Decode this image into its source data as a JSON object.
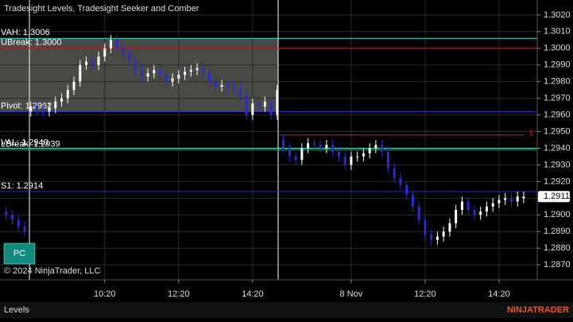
{
  "chart_data": {
    "type": "candlestick",
    "title": "Tradesight Levels, Tradesight Seeker and Comber",
    "copyright": "© 2024 NinjaTrader, LLC",
    "button": "PC",
    "tab": "Levels",
    "logo": "NINJATRADER",
    "up_color": "#ffffff",
    "down_color": "#2a2ad8",
    "grid": true,
    "xlim": [
      -1,
      86.2
    ],
    "xticks": [
      {
        "value": 16,
        "label": "10:20"
      },
      {
        "value": 28,
        "label": "12:20"
      },
      {
        "value": 40,
        "label": "14:20"
      },
      {
        "value": 56,
        "label": "8 Nov"
      },
      {
        "value": 68,
        "label": "12:20"
      },
      {
        "value": 80,
        "label": "14:20"
      }
    ],
    "ylim": [
      1.2861,
      1.3029
    ],
    "yticks": [
      {
        "value": 1.302,
        "label": "1.3020"
      },
      {
        "value": 1.301,
        "label": "1.3010"
      },
      {
        "value": 1.3,
        "label": "1.3000"
      },
      {
        "value": 1.299,
        "label": "1.2990"
      },
      {
        "value": 1.298,
        "label": "1.2980"
      },
      {
        "value": 1.297,
        "label": "1.2970"
      },
      {
        "value": 1.296,
        "label": "1.2960"
      },
      {
        "value": 1.295,
        "label": "1.2950"
      },
      {
        "value": 1.294,
        "label": "1.2940"
      },
      {
        "value": 1.293,
        "label": "1.2930"
      },
      {
        "value": 1.292,
        "label": "1.2920"
      },
      {
        "value": 1.291,
        "label": "1.2910"
      },
      {
        "value": 1.29,
        "label": "1.2900"
      },
      {
        "value": 1.289,
        "label": "1.2890"
      },
      {
        "value": 1.288,
        "label": "1.2880"
      },
      {
        "value": 1.287,
        "label": "1.2870"
      }
    ],
    "last_price": {
      "value": 1.2911,
      "label": "1.2911"
    },
    "levels": [
      {
        "label": "VAH: 1.3006",
        "value": 1.3006,
        "color": "#40e0d0"
      },
      {
        "label": "UBreak: 1.3000",
        "value": 1.3,
        "color": "#c02020"
      },
      {
        "label": "Pivot: 1.2962",
        "value": 1.2962,
        "color": "#3434d0"
      },
      {
        "label": "VAL: 1.2940",
        "value": 1.294,
        "color": "#40e0d0"
      },
      {
        "label": "LBreak: 1.2939",
        "value": 1.2939,
        "color": "#2e8b57"
      },
      {
        "label": "S1: 1.2914",
        "value": 1.2914,
        "color": "#2a2ad8"
      }
    ],
    "seeker_line": {
      "label": "1",
      "value": 1.2948,
      "color": "#c02020"
    },
    "open": [
      1.2902,
      1.29,
      1.2897,
      1.2893,
      1.2962,
      1.2965,
      1.2963,
      1.2962,
      1.2964,
      1.2968,
      1.297,
      1.2975,
      1.298,
      1.299,
      1.2992,
      1.299,
      1.2995,
      1.3,
      1.3005,
      1.3,
      1.2997,
      1.2992,
      1.2987,
      1.2983,
      1.2985,
      1.2987,
      1.2984,
      1.298,
      1.2982,
      1.2984,
      1.2986,
      1.2987,
      1.2988,
      1.2985,
      1.298,
      1.2977,
      1.2978,
      1.2977,
      1.2976,
      1.2972,
      1.296,
      1.2967,
      1.2965,
      1.2968,
      1.296,
      1.2945,
      1.294,
      1.2935,
      1.2933,
      1.294,
      1.2943,
      1.2942,
      1.294,
      1.2942,
      1.2938,
      1.2935,
      1.293,
      1.2935,
      1.2935,
      1.2937,
      1.294,
      1.2942,
      1.2938,
      1.2928,
      1.2922,
      1.2918,
      1.2912,
      1.2905,
      1.2897,
      1.2888,
      1.2885,
      1.2887,
      1.289,
      1.2895,
      1.2903,
      1.2908,
      1.2903,
      1.29,
      1.2902,
      1.2905,
      1.2907,
      1.2909,
      1.291,
      1.2908,
      1.291
    ],
    "high": [
      1.2905,
      1.2903,
      1.29,
      1.2896,
      1.2968,
      1.2968,
      1.2966,
      1.2967,
      1.2971,
      1.2973,
      1.2978,
      1.2983,
      1.2993,
      1.2995,
      1.2995,
      1.2998,
      1.3003,
      1.3008,
      1.3008,
      1.3003,
      1.3,
      1.2995,
      1.299,
      1.2988,
      1.299,
      1.299,
      1.2987,
      1.2985,
      1.2987,
      1.2989,
      1.299,
      1.2991,
      1.2991,
      1.2988,
      1.2983,
      1.2981,
      1.2981,
      1.298,
      1.2979,
      1.2975,
      1.297,
      1.297,
      1.2971,
      1.2971,
      1.2978,
      1.2948,
      1.2943,
      1.2938,
      1.2943,
      1.2946,
      1.2946,
      1.2945,
      1.2945,
      1.2945,
      1.2941,
      1.2938,
      1.2938,
      1.2938,
      1.294,
      1.2943,
      1.2945,
      1.2945,
      1.2941,
      1.2931,
      1.2925,
      1.2921,
      1.2915,
      1.2908,
      1.29,
      1.2891,
      1.289,
      1.2893,
      1.2898,
      1.2906,
      1.2911,
      1.2911,
      1.2906,
      1.2905,
      1.2908,
      1.291,
      1.2912,
      1.2913,
      1.2913,
      1.2914,
      1.2914
    ],
    "low": [
      1.2897,
      1.2894,
      1.289,
      1.2887,
      1.2959,
      1.296,
      1.2959,
      1.2959,
      1.2961,
      1.2965,
      1.2967,
      1.2972,
      1.2977,
      1.2987,
      1.2987,
      1.2987,
      1.2992,
      1.2997,
      1.2997,
      1.2994,
      1.2989,
      1.2984,
      1.298,
      1.298,
      1.2982,
      1.2981,
      1.2977,
      1.2977,
      1.2979,
      1.2981,
      1.2983,
      1.2984,
      1.2982,
      1.2977,
      1.2974,
      1.2974,
      1.2974,
      1.2973,
      1.2969,
      1.2957,
      1.2957,
      1.2962,
      1.2962,
      1.2957,
      1.2957,
      1.2937,
      1.2932,
      1.293,
      1.293,
      1.2937,
      1.2939,
      1.2937,
      1.2937,
      1.2935,
      1.2932,
      1.2927,
      1.2927,
      1.2932,
      1.2932,
      1.2934,
      1.2937,
      1.2935,
      1.2925,
      1.2919,
      1.2915,
      1.2909,
      1.2902,
      1.2894,
      1.2885,
      1.2882,
      1.2882,
      1.2884,
      1.2887,
      1.2892,
      1.29,
      1.29,
      1.2897,
      1.2897,
      1.2899,
      1.2902,
      1.2904,
      1.2906,
      1.2905,
      1.2905,
      1.2907
    ],
    "close": [
      1.29,
      1.2897,
      1.2893,
      1.289,
      1.2965,
      1.2963,
      1.2962,
      1.2964,
      1.2968,
      1.297,
      1.2975,
      1.298,
      1.299,
      1.2992,
      1.299,
      1.2995,
      1.3,
      1.3005,
      1.3,
      1.2997,
      1.2992,
      1.2987,
      1.2983,
      1.2985,
      1.2987,
      1.2984,
      1.298,
      1.2982,
      1.2984,
      1.2986,
      1.2987,
      1.2988,
      1.2985,
      1.298,
      1.2977,
      1.2978,
      1.2977,
      1.2976,
      1.2972,
      1.296,
      1.2967,
      1.2965,
      1.2968,
      1.296,
      1.2975,
      1.294,
      1.2935,
      1.2933,
      1.294,
      1.2943,
      1.2942,
      1.294,
      1.2942,
      1.2938,
      1.2935,
      1.293,
      1.2935,
      1.2935,
      1.2937,
      1.294,
      1.2942,
      1.2938,
      1.2928,
      1.2922,
      1.2918,
      1.2912,
      1.2905,
      1.2897,
      1.2888,
      1.2885,
      1.2887,
      1.289,
      1.2895,
      1.2903,
      1.2908,
      1.2903,
      1.29,
      1.2902,
      1.2905,
      1.2907,
      1.2909,
      1.291,
      1.2908,
      1.2911,
      1.2911
    ]
  }
}
